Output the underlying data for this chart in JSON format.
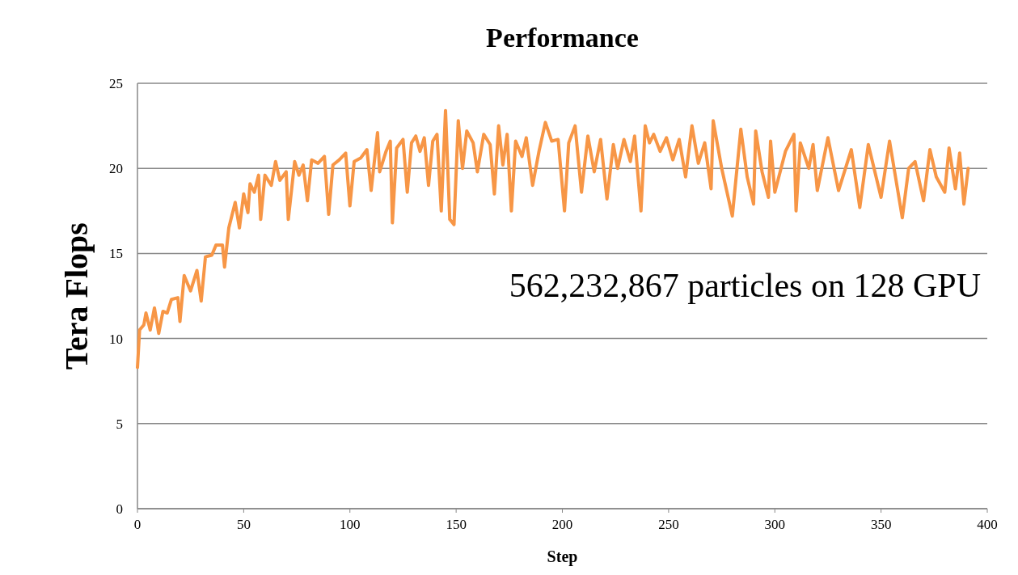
{
  "chart_data": {
    "type": "line",
    "title": "Performance",
    "xlabel": "Step",
    "ylabel": "Tera Flops",
    "xlim": [
      0,
      400
    ],
    "xticks": [
      0,
      50,
      100,
      150,
      200,
      250,
      300,
      350,
      400
    ],
    "ylim": [
      0,
      25
    ],
    "yticks": [
      0,
      5,
      10,
      15,
      20,
      25
    ],
    "grid": "y",
    "marker": "none",
    "line_style": "solid",
    "annotations": [
      "562,232,867 particles on 128 GPU"
    ],
    "series": [
      {
        "color": "#f79646",
        "x": [
          0,
          1,
          3,
          4,
          6,
          8,
          10,
          12,
          14,
          16,
          19,
          20,
          22,
          25,
          28,
          30,
          32,
          35,
          37,
          40,
          41,
          43,
          46,
          48,
          50,
          52,
          53,
          55,
          57,
          58,
          60,
          63,
          65,
          67,
          70,
          71,
          74,
          76,
          78,
          80,
          82,
          85,
          88,
          90,
          92,
          95,
          98,
          100,
          102,
          105,
          108,
          110,
          113,
          114,
          117,
          119,
          120,
          122,
          125,
          127,
          129,
          131,
          133,
          135,
          137,
          139,
          141,
          143,
          145,
          147,
          149,
          151,
          153,
          155,
          158,
          160,
          163,
          166,
          168,
          170,
          172,
          174,
          176,
          178,
          181,
          183,
          186,
          189,
          192,
          195,
          198,
          201,
          203,
          206,
          209,
          212,
          215,
          218,
          221,
          224,
          226,
          229,
          232,
          234,
          237,
          239,
          241,
          243,
          246,
          249,
          252,
          255,
          258,
          261,
          264,
          267,
          270,
          271,
          275,
          280,
          284,
          287,
          290,
          291,
          294,
          297,
          298,
          300,
          305,
          309,
          310,
          312,
          316,
          318,
          320,
          325,
          330,
          336,
          340,
          344,
          350,
          354,
          360,
          363,
          366,
          370,
          373,
          376,
          380,
          382,
          385,
          387,
          389,
          391
        ],
        "values": [
          8.3,
          10.5,
          10.8,
          11.5,
          10.5,
          11.8,
          10.3,
          11.6,
          11.5,
          12.3,
          12.4,
          11.0,
          13.7,
          12.8,
          14.0,
          12.2,
          14.8,
          14.9,
          15.5,
          15.5,
          14.2,
          16.5,
          18.0,
          16.5,
          18.5,
          17.4,
          19.1,
          18.6,
          19.6,
          17.0,
          19.6,
          19.0,
          20.4,
          19.3,
          19.8,
          17.0,
          20.4,
          19.6,
          20.2,
          18.1,
          20.5,
          20.3,
          20.7,
          17.3,
          20.2,
          20.5,
          20.9,
          17.8,
          20.4,
          20.6,
          21.1,
          18.7,
          22.1,
          19.8,
          21.0,
          21.6,
          16.8,
          21.2,
          21.7,
          18.6,
          21.5,
          21.9,
          21.0,
          21.8,
          19.0,
          21.6,
          22.0,
          17.5,
          23.4,
          17.0,
          16.7,
          22.8,
          20.0,
          22.2,
          21.5,
          19.8,
          22.0,
          21.4,
          18.5,
          22.5,
          20.2,
          22.0,
          17.5,
          21.6,
          20.7,
          21.8,
          19.0,
          21.0,
          22.7,
          21.6,
          21.7,
          17.5,
          21.5,
          22.5,
          18.6,
          21.9,
          19.8,
          21.7,
          18.2,
          21.4,
          20.0,
          21.7,
          20.4,
          21.9,
          17.5,
          22.5,
          21.5,
          22.0,
          21.0,
          21.8,
          20.5,
          21.7,
          19.5,
          22.5,
          20.3,
          21.5,
          18.8,
          22.8,
          20.0,
          17.2,
          22.3,
          19.5,
          17.9,
          22.2,
          19.8,
          18.3,
          21.6,
          18.6,
          21.0,
          22.0,
          17.5,
          21.5,
          20.0,
          21.4,
          18.7,
          21.8,
          18.7,
          21.1,
          17.7,
          21.4,
          18.3,
          21.6,
          17.1,
          20.0,
          20.4,
          18.1,
          21.1,
          19.5,
          18.6,
          21.2,
          18.8,
          20.9,
          17.9,
          20.0
        ]
      }
    ]
  }
}
